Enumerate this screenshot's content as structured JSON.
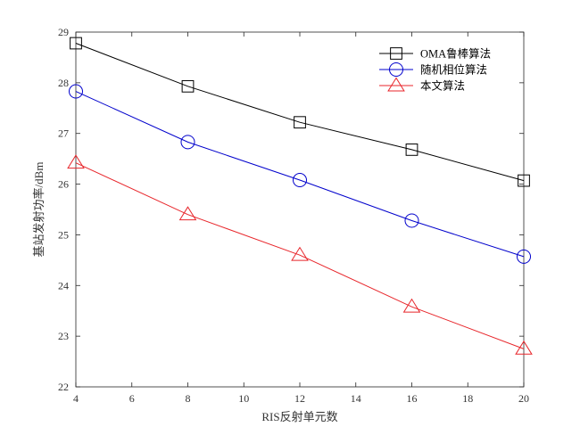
{
  "chart_data": {
    "type": "line",
    "title": "",
    "xlabel": "RIS反射单元数",
    "ylabel": "基站发射功率/dBm",
    "xlim": [
      4,
      20
    ],
    "ylim": [
      22,
      29
    ],
    "xticks": [
      4,
      6,
      8,
      10,
      12,
      14,
      16,
      18,
      20
    ],
    "yticks": [
      22,
      23,
      24,
      25,
      26,
      27,
      28,
      29
    ],
    "x": [
      4,
      8,
      12,
      16,
      20
    ],
    "grid": false,
    "legend_position": "top-right",
    "series": [
      {
        "name": "OMA鲁棒算法",
        "color": "#000000",
        "marker": "square",
        "values": [
          28.78,
          27.93,
          27.22,
          26.68,
          26.07
        ]
      },
      {
        "name": "随机相位算法",
        "color": "#0000cc",
        "marker": "circle",
        "values": [
          27.83,
          26.83,
          26.08,
          25.28,
          24.57
        ]
      },
      {
        "name": "本文算法",
        "color": "#e8262b",
        "marker": "triangle",
        "values": [
          26.42,
          25.4,
          24.6,
          23.58,
          22.75
        ]
      }
    ]
  }
}
